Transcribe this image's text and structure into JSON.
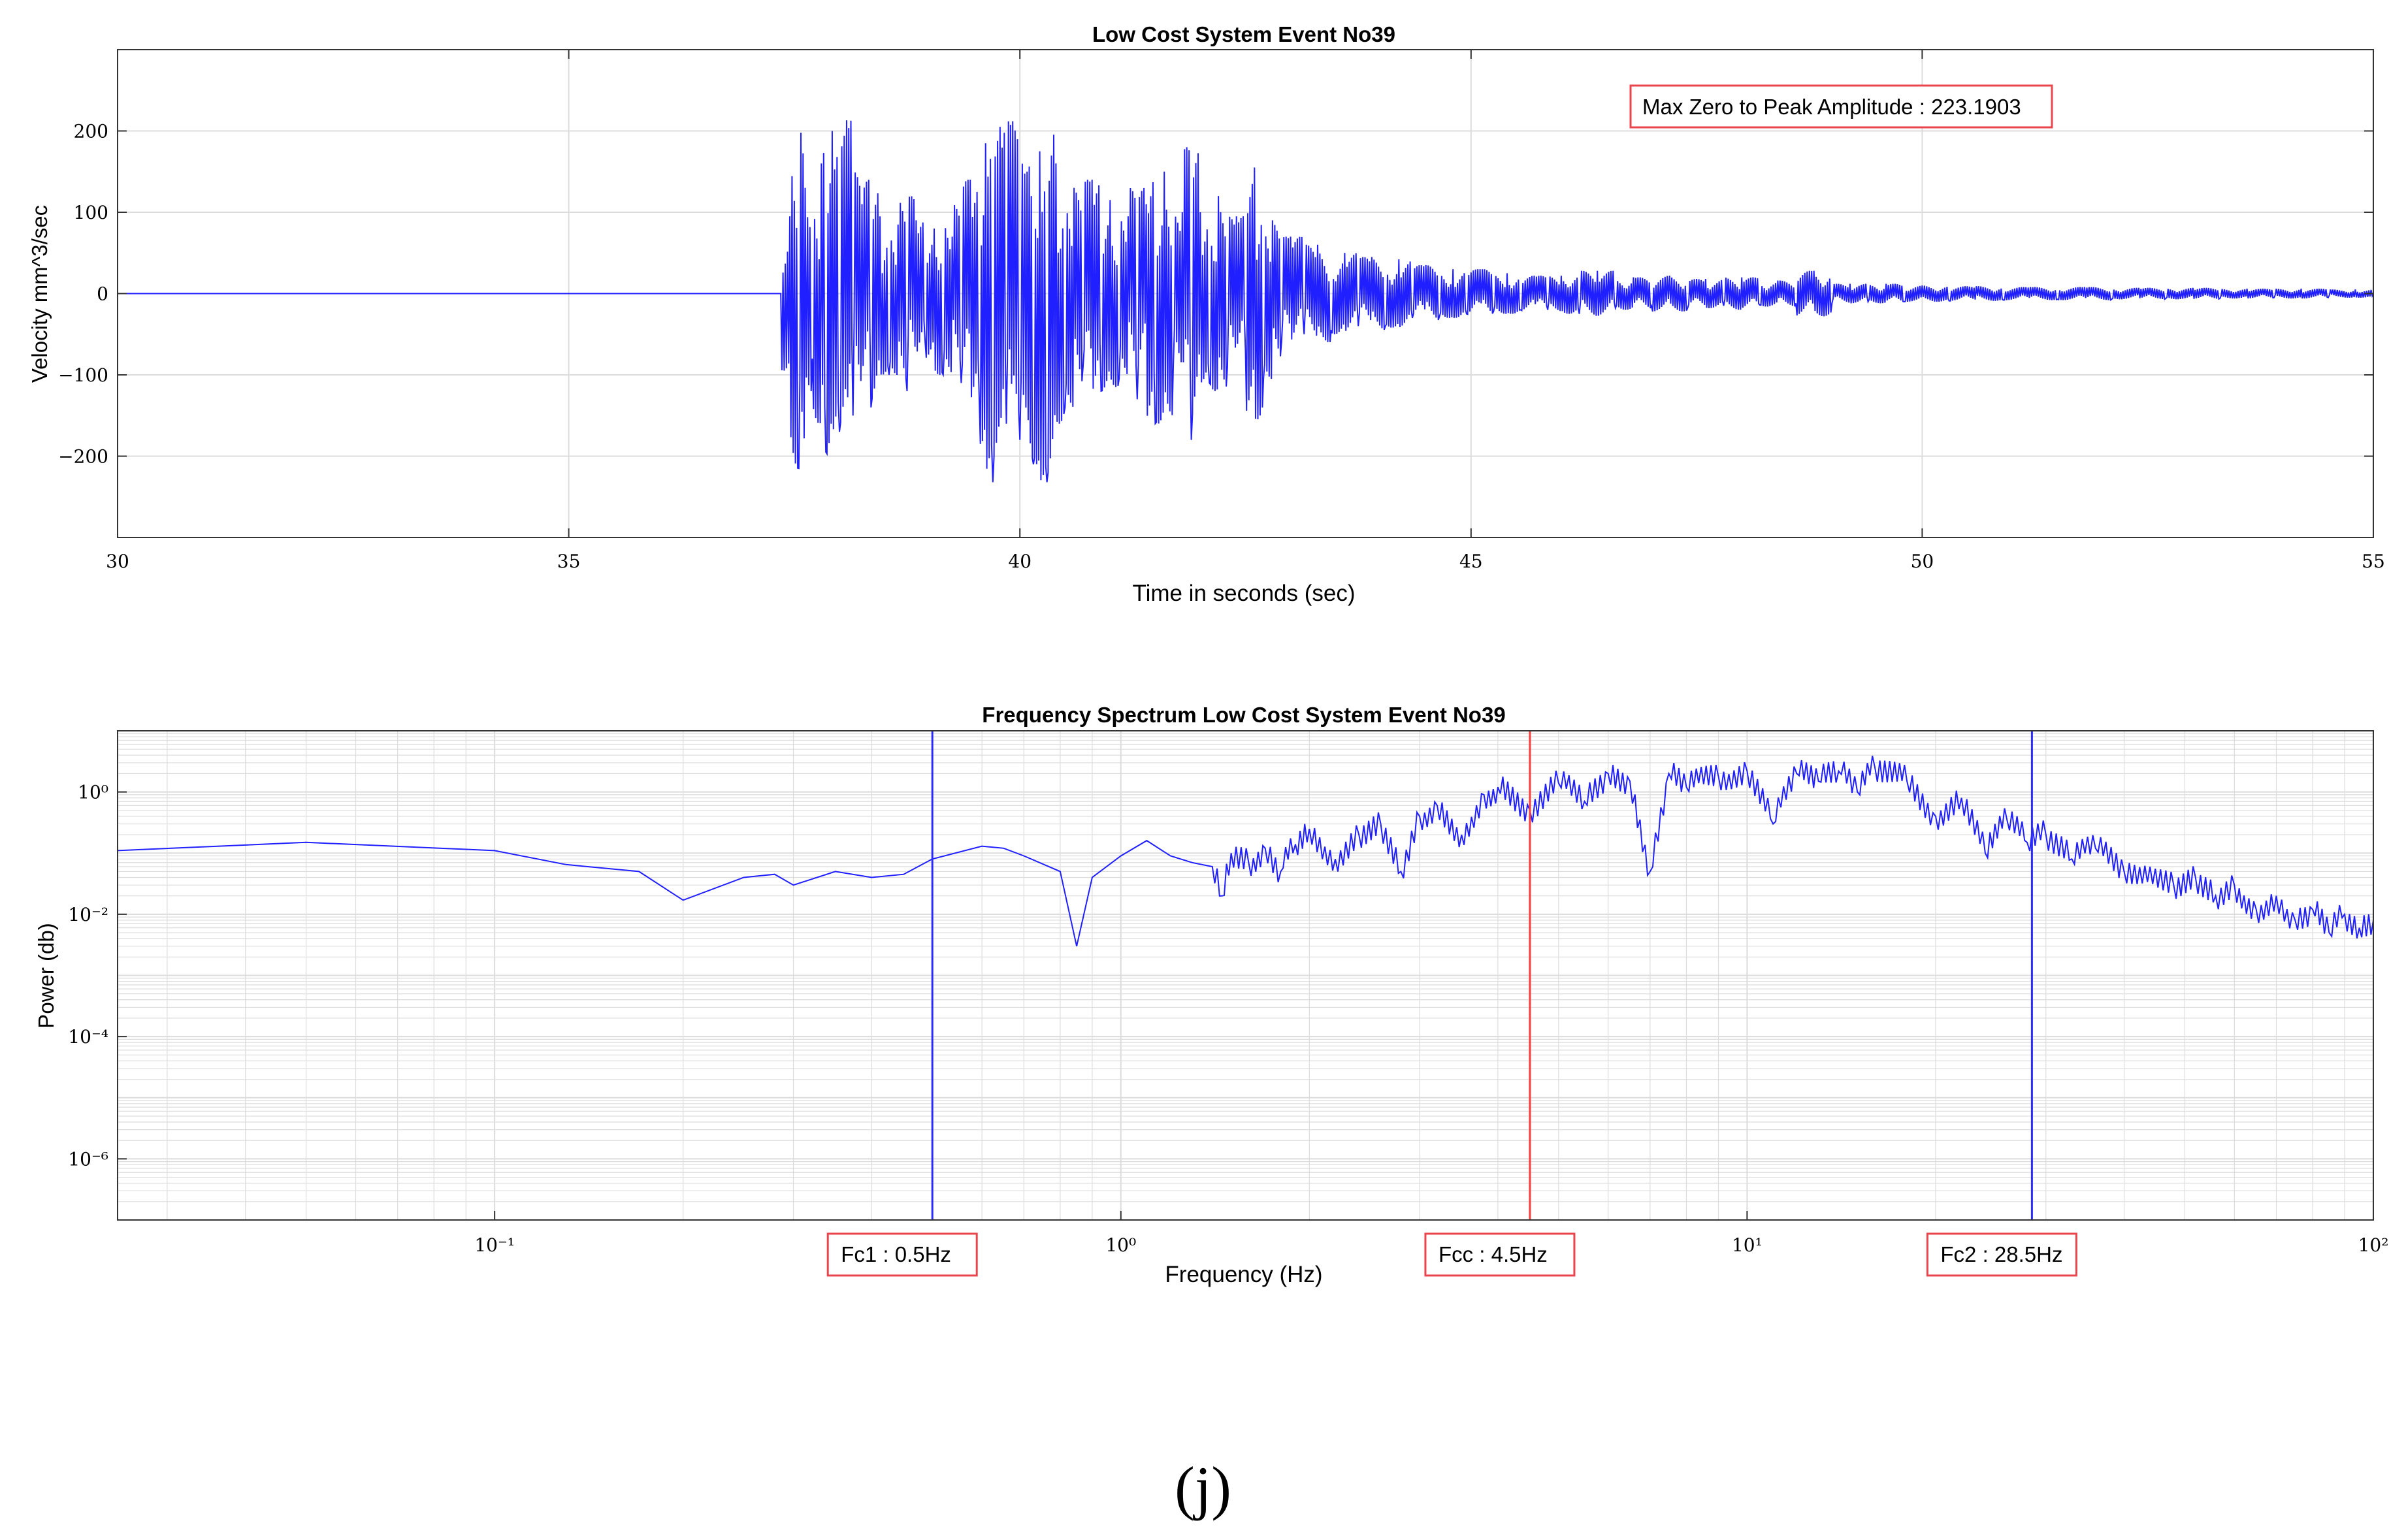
{
  "caption": "(j)",
  "colors": {
    "signal": "#1f1fff",
    "fc_line": "#2b2bff",
    "fcc_line": "#ff3b3b",
    "annotation_border": "#e8454d",
    "grid": "#dcdcdc",
    "axis": "#333333"
  },
  "chart_data": [
    {
      "id": "time-series",
      "type": "line",
      "title": "Low Cost System Event No39",
      "xlabel": "Time in seconds (sec)",
      "ylabel": "Velocity mm^3/sec",
      "xlim": [
        30,
        55
      ],
      "ylim": [
        -300,
        300
      ],
      "xticks": [
        30,
        35,
        40,
        45,
        50,
        55
      ],
      "xtick_labels": [
        "30",
        "35",
        "40",
        "45",
        "50",
        "55"
      ],
      "yticks": [
        -200,
        -100,
        0,
        100,
        200
      ],
      "ytick_labels": [
        "−200",
        "−100",
        "0",
        "100",
        "200"
      ],
      "grid": true,
      "annotation": "Max Zero to Peak Amplitude : 223.1903",
      "series": [
        {
          "x": [
            30,
            37.35,
            37.45,
            37.55,
            37.62,
            37.7,
            37.8,
            37.85,
            37.92,
            38.0,
            38.08,
            38.15,
            38.25,
            38.35,
            38.45,
            38.55,
            38.65,
            38.75,
            38.85,
            38.95,
            39.05,
            39.15,
            39.25,
            39.35,
            39.45,
            39.55,
            39.62,
            39.7,
            39.78,
            39.85,
            39.92,
            40.0,
            40.08,
            40.15,
            40.22,
            40.3,
            40.4,
            40.5,
            40.6,
            40.7,
            40.8,
            40.9,
            41.0,
            41.1,
            41.2,
            41.3,
            41.4,
            41.5,
            41.6,
            41.7,
            41.8,
            41.9,
            42.0,
            42.1,
            42.2,
            42.3,
            42.4,
            42.5,
            42.6,
            42.7,
            42.8,
            42.9,
            43.0,
            43.15,
            43.3,
            43.45,
            43.6,
            43.75,
            43.9,
            44.05,
            44.2,
            44.35,
            44.5,
            44.65,
            44.8,
            44.95,
            45.1,
            45.25,
            45.4,
            45.55,
            45.7,
            45.85,
            46.0,
            46.2,
            46.4,
            46.6,
            46.8,
            47.0,
            47.2,
            47.4,
            47.6,
            47.8,
            48.0,
            48.2,
            48.4,
            48.6,
            48.8,
            49.0,
            49.2,
            49.4,
            49.6,
            49.8,
            50.0,
            50.3,
            50.6,
            50.9,
            51.2,
            51.5,
            51.8,
            52.1,
            52.4,
            52.7,
            53.0,
            53.3,
            53.6,
            53.9,
            54.2,
            54.5,
            54.8,
            55.0
          ],
          "y": [
            0,
            0,
            95,
            -215,
            130,
            -80,
            160,
            -195,
            200,
            -170,
            213,
            -150,
            110,
            -140,
            95,
            -100,
            85,
            -120,
            90,
            -60,
            80,
            -100,
            70,
            -110,
            140,
            -130,
            185,
            -232,
            205,
            -160,
            212,
            -180,
            150,
            -210,
            175,
            -232,
            160,
            -140,
            130,
            -90,
            140,
            -120,
            115,
            -105,
            95,
            -130,
            110,
            -160,
            150,
            -90,
            100,
            -180,
            100,
            -110,
            120,
            -90,
            95,
            -70,
            155,
            -105,
            90,
            -60,
            70,
            -50,
            60,
            -45,
            50,
            -40,
            45,
            -40,
            42,
            -30,
            35,
            -28,
            30,
            -25,
            30,
            -22,
            25,
            -20,
            22,
            -20,
            22,
            -25,
            28,
            -18,
            20,
            -15,
            22,
            -18,
            18,
            -15,
            20,
            -14,
            16,
            -12,
            28,
            -12,
            12,
            -10,
            12,
            -10,
            10,
            -9,
            9,
            -8,
            8,
            -7,
            8,
            -7,
            7,
            -6,
            7,
            -6,
            6,
            -5,
            6,
            -5,
            5,
            0
          ]
        }
      ]
    },
    {
      "id": "frequency-spectrum",
      "type": "line",
      "title": "Frequency Spectrum Low Cost System Event No39",
      "xlabel": "Frequency (Hz)",
      "ylabel": "Power (db)",
      "x_scale": "log",
      "y_scale": "log",
      "xlim": [
        0.025,
        100
      ],
      "ylim": [
        1e-07,
        10
      ],
      "xticks": [
        0.1,
        1,
        10,
        100
      ],
      "xtick_labels": [
        "10⁻¹",
        "10⁰",
        "10¹",
        "10²"
      ],
      "yticks": [
        1e-06,
        0.0001,
        0.01,
        1
      ],
      "ytick_labels": [
        "10⁻⁶",
        "10⁻⁴",
        "10⁻²",
        "10⁰"
      ],
      "grid": true,
      "markers": [
        {
          "label": "Fc1 : 0.5Hz",
          "x": 0.5,
          "color": "#2b2bff"
        },
        {
          "label": "Fcc : 4.5Hz",
          "x": 4.5,
          "color": "#ff3b3b"
        },
        {
          "label": "Fc2 : 28.5Hz",
          "x": 28.5,
          "color": "#2b2bff"
        }
      ],
      "series": [
        {
          "x": [
            0.025,
            0.05,
            0.1,
            0.13,
            0.17,
            0.2,
            0.25,
            0.28,
            0.3,
            0.35,
            0.4,
            0.45,
            0.5,
            0.6,
            0.65,
            0.7,
            0.8,
            0.85,
            0.9,
            1.0,
            1.1,
            1.2,
            1.3,
            1.4,
            1.45,
            1.5,
            1.6,
            1.7,
            1.8,
            1.9,
            2.0,
            2.2,
            2.4,
            2.6,
            2.8,
            3.0,
            3.2,
            3.5,
            3.8,
            4.0,
            4.5,
            5.0,
            5.5,
            6.0,
            6.5,
            7.0,
            7.5,
            8.0,
            9.0,
            10.0,
            11.0,
            12.0,
            13.0,
            14.0,
            15.0,
            16.0,
            18.0,
            20.0,
            22.0,
            24.0,
            26.0,
            28.0,
            30.0,
            33.0,
            36.0,
            40.0,
            44.0,
            48.0,
            52.0,
            56.0,
            60.0,
            65.0,
            70.0,
            75.0,
            80.0,
            85.0,
            90.0,
            95.0,
            100.0
          ],
          "y": [
            0.11,
            0.15,
            0.11,
            0.065,
            0.05,
            0.017,
            0.04,
            0.045,
            0.03,
            0.05,
            0.04,
            0.045,
            0.08,
            0.13,
            0.12,
            0.09,
            0.05,
            0.003,
            0.04,
            0.09,
            0.16,
            0.09,
            0.07,
            0.06,
            0.02,
            0.1,
            0.07,
            0.12,
            0.05,
            0.14,
            0.25,
            0.08,
            0.2,
            0.3,
            0.05,
            0.4,
            0.6,
            0.2,
            0.9,
            1.2,
            0.5,
            1.4,
            0.7,
            2.0,
            1.5,
            0.05,
            2.0,
            1.2,
            1.8,
            2.2,
            0.3,
            2.0,
            1.5,
            2.2,
            1.0,
            2.5,
            1.5,
            0.4,
            0.8,
            0.1,
            0.35,
            0.15,
            0.2,
            0.08,
            0.12,
            0.05,
            0.06,
            0.03,
            0.04,
            0.02,
            0.03,
            0.012,
            0.02,
            0.008,
            0.012,
            0.005,
            0.01,
            0.006,
            0.008
          ]
        }
      ]
    }
  ]
}
